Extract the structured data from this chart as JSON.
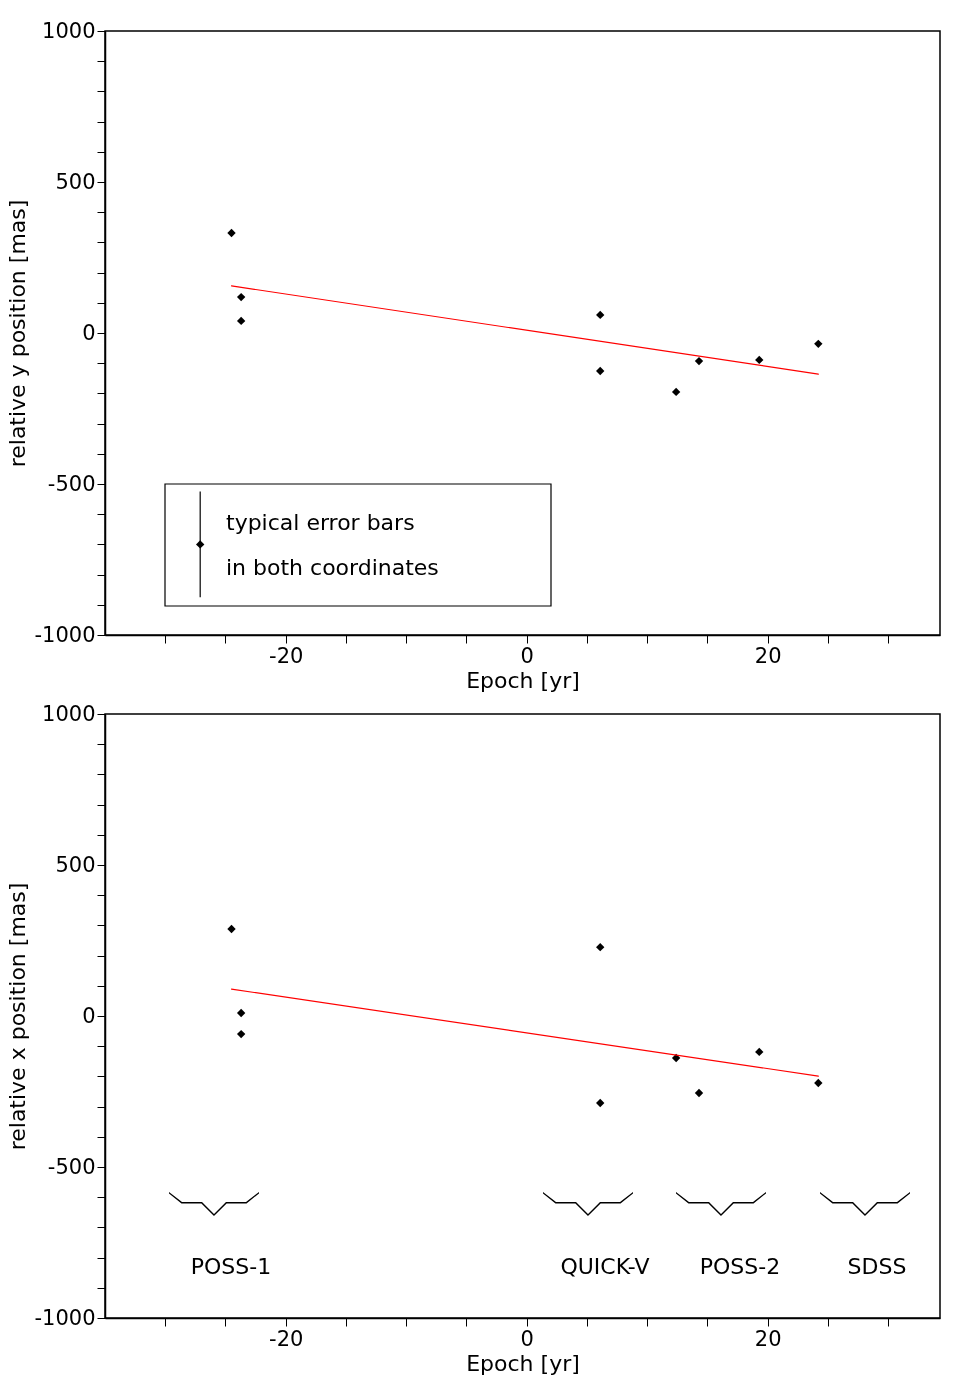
{
  "chart_data": [
    {
      "type": "scatter",
      "xlabel": "Epoch [yr]",
      "ylabel": "relative y position [mas]",
      "marker": "diamond",
      "xlim": [
        -35,
        34.3
      ],
      "xticks": [
        {
          "value": -30,
          "label": null
        },
        {
          "value": -25,
          "label": null
        },
        -20,
        {
          "value": -15,
          "label": null
        },
        {
          "value": -10,
          "label": null
        },
        {
          "value": -5,
          "label": null
        },
        0,
        {
          "value": 5,
          "label": null
        },
        {
          "value": 10,
          "label": null
        },
        {
          "value": 15,
          "label": null
        },
        20,
        {
          "value": 25,
          "label": null
        },
        {
          "value": 30,
          "label": null
        }
      ],
      "ylim": [
        -1000,
        1000
      ],
      "yticks": [
        -1000,
        {
          "value": -900,
          "label": null
        },
        {
          "value": -800,
          "label": null
        },
        {
          "value": -700,
          "label": null
        },
        {
          "value": -600,
          "label": null
        },
        -500,
        {
          "value": -400,
          "label": null
        },
        {
          "value": -300,
          "label": null
        },
        {
          "value": -200,
          "label": null
        },
        {
          "value": -100,
          "label": null
        },
        0,
        {
          "value": 100,
          "label": null
        },
        {
          "value": 200,
          "label": null
        },
        {
          "value": 300,
          "label": null
        },
        {
          "value": 400,
          "label": null
        },
        500,
        {
          "value": 600,
          "label": null
        },
        {
          "value": 700,
          "label": null
        },
        {
          "value": 800,
          "label": null
        },
        {
          "value": 900,
          "label": null
        },
        1000
      ],
      "series": [
        {
          "color": "#000000",
          "x": [
            -24.5,
            -23.7,
            -23.7,
            6.1,
            6.1,
            12.4,
            14.3,
            19.3,
            24.2
          ],
          "values": [
            331,
            119,
            40,
            60,
            -126,
            -195,
            -93,
            -89,
            -36
          ]
        },
        {
          "type": "line",
          "marker": "none",
          "color": "#ff0000",
          "x": [
            -24.5,
            24.2
          ],
          "values": [
            156,
            -136
          ]
        },
        {
          "color": "#000000",
          "x": [
            -27.1
          ],
          "values": [
            -700
          ],
          "errors": [
            175
          ]
        }
      ],
      "annotations": [
        "typical error bars",
        "in both coordinates"
      ]
    },
    {
      "type": "scatter",
      "xlabel": "Epoch [yr]",
      "ylabel": "relative x position [mas]",
      "marker": "diamond",
      "xlim": [
        -35,
        34.3
      ],
      "xticks": [
        {
          "value": -30,
          "label": null
        },
        {
          "value": -25,
          "label": null
        },
        -20,
        {
          "value": -15,
          "label": null
        },
        {
          "value": -10,
          "label": null
        },
        {
          "value": -5,
          "label": null
        },
        0,
        {
          "value": 5,
          "label": null
        },
        {
          "value": 10,
          "label": null
        },
        {
          "value": 15,
          "label": null
        },
        20,
        {
          "value": 25,
          "label": null
        },
        {
          "value": 30,
          "label": null
        }
      ],
      "ylim": [
        -1000,
        1000
      ],
      "yticks": [
        -1000,
        {
          "value": -900,
          "label": null
        },
        {
          "value": -800,
          "label": null
        },
        {
          "value": -700,
          "label": null
        },
        {
          "value": -600,
          "label": null
        },
        -500,
        {
          "value": -400,
          "label": null
        },
        {
          "value": -300,
          "label": null
        },
        {
          "value": -200,
          "label": null
        },
        {
          "value": -100,
          "label": null
        },
        0,
        {
          "value": 100,
          "label": null
        },
        {
          "value": 200,
          "label": null
        },
        {
          "value": 300,
          "label": null
        },
        {
          "value": 400,
          "label": null
        },
        500,
        {
          "value": 600,
          "label": null
        },
        {
          "value": 700,
          "label": null
        },
        {
          "value": 800,
          "label": null
        },
        {
          "value": 900,
          "label": null
        },
        1000
      ],
      "series": [
        {
          "color": "#000000",
          "x": [
            -24.5,
            -23.7,
            -23.7,
            6.1,
            6.1,
            12.4,
            14.3,
            19.3,
            24.2
          ],
          "values": [
            288,
            10,
            -60,
            228,
            -288,
            -139,
            -255,
            -119,
            -222
          ]
        },
        {
          "type": "line",
          "marker": "none",
          "color": "#ff0000",
          "x": [
            -24.5,
            24.2
          ],
          "values": [
            89,
            -199
          ]
        }
      ],
      "annotations": [
        "POSS-1",
        "QUICK-V",
        "POSS-2",
        "SDSS"
      ]
    }
  ]
}
